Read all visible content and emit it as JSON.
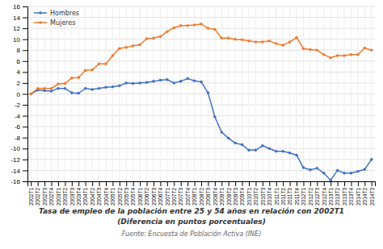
{
  "chart_data": {
    "type": "line",
    "title": [
      "Tasa de empleo de la población entre 25 y 54 años en relación con 2002T1",
      "(Diferencia en puntos porcentuales)"
    ],
    "subtitle": "Fuente: Encuesta de Población Activa (INE)",
    "categories": [
      "2002T1",
      "2002T2",
      "2002T3",
      "2002T4",
      "2003T1",
      "2003T2",
      "2003T3",
      "2003T4",
      "2004T1",
      "2004T2",
      "2004T3",
      "2004T4",
      "2005T1",
      "2005T2",
      "2005T3",
      "2005T4",
      "2006T1",
      "2006T2",
      "2006T3",
      "2006T4",
      "2007T1",
      "2007T2",
      "2007T3",
      "2007T4",
      "2008T1",
      "2008T2",
      "2008T3",
      "2008T4",
      "2009T1",
      "2009T2",
      "2009T3",
      "2009T4",
      "2010T1",
      "2010T2",
      "2010T3",
      "2010T4",
      "2011T1",
      "2011T2",
      "2011T3",
      "2011T4",
      "2012T1",
      "2012T2",
      "2012T3",
      "2012T4",
      "2013T1",
      "2013T2",
      "2013T3",
      "2013T4",
      "2014T1",
      "2014T2",
      "2014T3"
    ],
    "series": [
      {
        "name": "Hombres",
        "color": "#4472C4",
        "marker": "circle",
        "values": [
          0.0,
          0.7,
          0.6,
          0.5,
          1.0,
          1.0,
          0.2,
          0.1,
          1.0,
          0.8,
          1.0,
          1.2,
          1.3,
          1.5,
          2.0,
          1.9,
          2.0,
          2.1,
          2.3,
          2.5,
          2.6,
          2.0,
          2.3,
          2.8,
          2.4,
          2.2,
          0.2,
          -4.2,
          -7.0,
          -8.1,
          -9.0,
          -9.3,
          -10.3,
          -10.3,
          -9.5,
          -10.0,
          -10.5,
          -10.5,
          -10.8,
          -11.2,
          -13.5,
          -13.9,
          -13.6,
          -14.5,
          -15.8,
          -14.0,
          -14.5,
          -14.5,
          -14.2,
          -13.8,
          -12.0
        ]
      },
      {
        "name": "Mujeres",
        "color": "#ED7D31",
        "marker": "circle",
        "values": [
          0.0,
          1.0,
          1.0,
          1.0,
          1.8,
          1.9,
          2.9,
          3.0,
          4.3,
          4.4,
          5.5,
          5.5,
          7.0,
          8.3,
          8.5,
          8.8,
          9.0,
          10.1,
          10.2,
          10.5,
          11.4,
          12.1,
          12.5,
          12.5,
          12.6,
          12.8,
          12.0,
          11.8,
          10.2,
          10.2,
          10.0,
          9.9,
          9.7,
          9.5,
          9.5,
          9.7,
          9.2,
          8.9,
          9.5,
          10.3,
          8.3,
          8.1,
          8.0,
          7.2,
          6.6,
          7.0,
          7.0,
          7.2,
          7.2,
          8.4,
          8.0
        ]
      }
    ],
    "ylim": [
      -16,
      16
    ],
    "yticks": [
      -16,
      -14,
      -12,
      -10,
      -8,
      -6,
      -4,
      -2,
      0,
      2,
      4,
      6,
      8,
      10,
      12,
      14,
      16
    ],
    "grid": true,
    "legend": "upper left"
  }
}
